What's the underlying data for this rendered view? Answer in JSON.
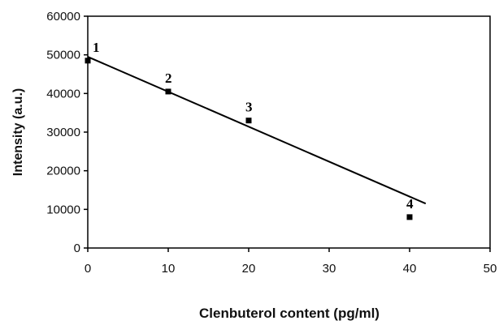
{
  "chart_data": {
    "type": "scatter",
    "xlabel": "Clenbuterol content (pg/ml)",
    "ylabel": "Intensity (a.u.)",
    "xlim": [
      0,
      50
    ],
    "ylim": [
      0,
      60000
    ],
    "x_ticks": [
      "0",
      "10",
      "20",
      "30",
      "40",
      "50"
    ],
    "y_ticks": [
      "0",
      "10000",
      "20000",
      "30000",
      "40000",
      "50000",
      "60000"
    ],
    "grid": false,
    "legend": "none",
    "points": [
      {
        "label": "1",
        "x": 0,
        "y": 48500
      },
      {
        "label": "2",
        "x": 10,
        "y": 40500
      },
      {
        "label": "3",
        "x": 20,
        "y": 33000
      },
      {
        "label": "4",
        "x": 40,
        "y": 8000
      }
    ],
    "trendline": {
      "x": [
        0,
        42
      ],
      "y": [
        49500,
        11500
      ]
    },
    "colors": {
      "axis": "#000000",
      "marker": "#000000",
      "line": "#000000"
    }
  }
}
